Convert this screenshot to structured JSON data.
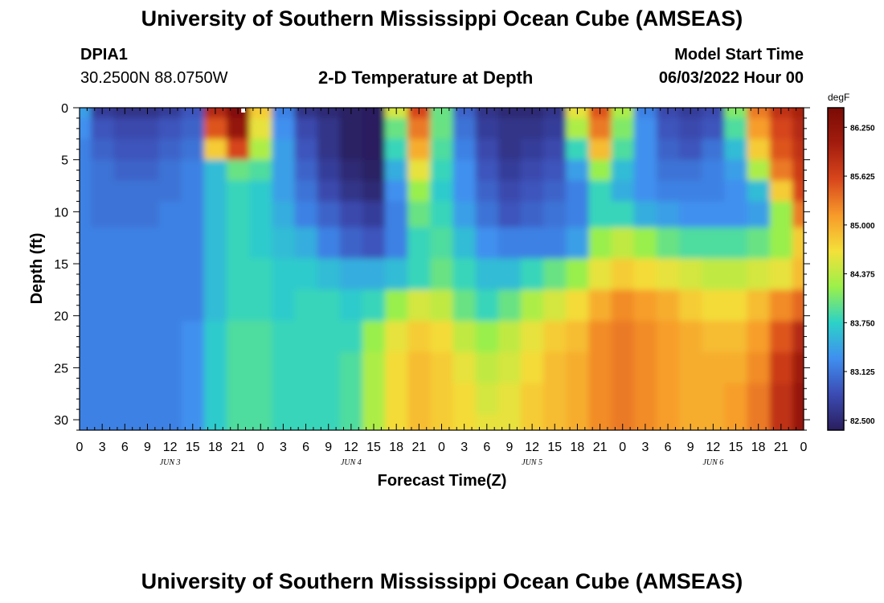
{
  "page": {
    "title": "University of Southern Mississippi Ocean Cube (AMSEAS)",
    "title_repeat": "University of Southern Mississippi Ocean Cube (AMSEAS)",
    "station_id": "DPIA1",
    "station_coords": "30.2500N  88.0750W",
    "plot_subtitle": "2-D Temperature at Depth",
    "model_start_label": "Model Start Time",
    "model_start_value": "06/03/2022 Hour 00"
  },
  "chart_data": {
    "type": "heatmap",
    "title": "2-D Temperature at Depth",
    "xlabel": "Forecast Time(Z)",
    "ylabel": "Depth (ft)",
    "colorbar_unit": "degF",
    "x_range_hours": [
      0,
      96
    ],
    "y_range_ft": [
      0,
      31
    ],
    "y_inverted": true,
    "x_tick_labels": [
      "0",
      "3",
      "6",
      "9",
      "12",
      "15",
      "18",
      "21",
      "0",
      "3",
      "6",
      "9",
      "12",
      "15",
      "18",
      "21",
      "0",
      "3",
      "6",
      "9",
      "12",
      "15",
      "18",
      "21",
      "0",
      "3",
      "6",
      "9",
      "12",
      "15",
      "18",
      "21",
      "0"
    ],
    "y_ticks": [
      0,
      5,
      10,
      15,
      20,
      25,
      30
    ],
    "day_labels": [
      {
        "label": "JUN 3",
        "hour": 12
      },
      {
        "label": "JUN 4",
        "hour": 36
      },
      {
        "label": "JUN 5",
        "hour": 60
      },
      {
        "label": "JUN 6",
        "hour": 84
      }
    ],
    "colorbar_range": [
      82.375,
      86.5
    ],
    "colorbar_ticks": [
      "82.500",
      "83.125",
      "83.750",
      "84.375",
      "85.000",
      "85.625",
      "86.250"
    ],
    "colorbar_tick_values": [
      82.5,
      83.125,
      83.75,
      84.375,
      85.0,
      85.625,
      86.25
    ],
    "palette": [
      "#2a1e5e",
      "#3b4bb3",
      "#3f8ff0",
      "#2cd2c8",
      "#9bf04a",
      "#f4e03a",
      "#f79a2a",
      "#d8461c",
      "#a31c0e",
      "#7a0b05"
    ],
    "depth_levels_ft": [
      0,
      2,
      4,
      6,
      8,
      10,
      13,
      16,
      19,
      22,
      25,
      28,
      31
    ],
    "time_hours": [
      0,
      3,
      6,
      9,
      12,
      15,
      18,
      21,
      24,
      27,
      30,
      33,
      36,
      39,
      42,
      45,
      48,
      51,
      54,
      57,
      60,
      63,
      66,
      69,
      72,
      75,
      78,
      81,
      84,
      87,
      90,
      93,
      96
    ],
    "temperature_degF": [
      [
        83.4,
        82.7,
        82.6,
        82.6,
        82.7,
        82.9,
        85.9,
        86.4,
        84.8,
        83.2,
        82.6,
        82.5,
        82.4,
        82.3,
        84.5,
        85.6,
        84.0,
        83.0,
        82.6,
        82.5,
        82.5,
        82.6,
        84.6,
        85.5,
        84.3,
        83.2,
        82.8,
        82.7,
        82.8,
        84.1,
        85.3,
        85.8,
        86.0
      ],
      [
        83.3,
        82.9,
        82.8,
        82.8,
        82.9,
        83.0,
        85.5,
        86.2,
        84.6,
        83.3,
        82.8,
        82.6,
        82.4,
        82.3,
        84.0,
        85.3,
        84.0,
        83.1,
        82.7,
        82.6,
        82.6,
        82.7,
        84.3,
        85.3,
        84.1,
        83.3,
        82.9,
        82.8,
        82.9,
        83.9,
        85.1,
        85.6,
        85.9
      ],
      [
        83.2,
        83.0,
        82.9,
        82.9,
        83.0,
        83.1,
        84.8,
        85.6,
        84.3,
        83.4,
        82.9,
        82.6,
        82.4,
        82.3,
        83.8,
        85.0,
        83.9,
        83.2,
        82.8,
        82.6,
        82.7,
        82.8,
        83.8,
        84.9,
        83.9,
        83.3,
        83.0,
        82.9,
        83.1,
        83.6,
        84.8,
        85.5,
        85.8
      ],
      [
        83.2,
        83.1,
        83.0,
        83.0,
        83.1,
        83.2,
        83.6,
        84.0,
        83.9,
        83.4,
        83.0,
        82.7,
        82.5,
        82.4,
        83.5,
        84.6,
        83.8,
        83.3,
        82.9,
        82.7,
        82.8,
        82.9,
        83.4,
        84.2,
        83.6,
        83.3,
        83.1,
        83.1,
        83.2,
        83.4,
        84.3,
        85.3,
        85.7
      ],
      [
        83.2,
        83.1,
        83.1,
        83.1,
        83.1,
        83.2,
        83.6,
        83.8,
        83.7,
        83.4,
        83.1,
        82.8,
        82.6,
        82.5,
        83.3,
        84.2,
        83.7,
        83.3,
        83.0,
        82.8,
        82.9,
        83.0,
        83.2,
        83.8,
        83.5,
        83.3,
        83.2,
        83.2,
        83.2,
        83.3,
        83.6,
        84.8,
        85.6
      ],
      [
        83.2,
        83.1,
        83.1,
        83.1,
        83.2,
        83.2,
        83.6,
        83.8,
        83.7,
        83.5,
        83.2,
        83.0,
        82.8,
        82.7,
        83.2,
        84.0,
        83.8,
        83.4,
        83.1,
        82.9,
        83.0,
        83.1,
        83.2,
        83.8,
        83.8,
        83.5,
        83.4,
        83.3,
        83.3,
        83.3,
        83.4,
        84.2,
        85.3
      ],
      [
        83.2,
        83.2,
        83.2,
        83.2,
        83.2,
        83.2,
        83.6,
        83.8,
        83.7,
        83.6,
        83.5,
        83.2,
        83.0,
        82.9,
        83.2,
        83.8,
        83.9,
        83.6,
        83.3,
        83.2,
        83.2,
        83.2,
        83.4,
        84.2,
        84.4,
        84.2,
        84.0,
        83.9,
        83.9,
        83.9,
        84.0,
        84.2,
        84.8
      ],
      [
        83.2,
        83.2,
        83.2,
        83.2,
        83.2,
        83.2,
        83.6,
        83.8,
        83.8,
        83.7,
        83.7,
        83.6,
        83.5,
        83.5,
        83.6,
        83.8,
        84.0,
        83.8,
        83.6,
        83.6,
        83.8,
        84.0,
        84.2,
        84.6,
        84.8,
        84.7,
        84.6,
        84.5,
        84.4,
        84.4,
        84.5,
        84.6,
        84.9
      ],
      [
        83.2,
        83.2,
        83.2,
        83.2,
        83.2,
        83.2,
        83.6,
        83.8,
        83.8,
        83.7,
        83.8,
        83.8,
        83.7,
        83.8,
        84.2,
        84.5,
        84.4,
        84.0,
        83.8,
        84.0,
        84.3,
        84.5,
        84.7,
        85.0,
        85.2,
        85.1,
        85.0,
        84.8,
        84.7,
        84.7,
        84.9,
        85.2,
        85.4
      ],
      [
        83.2,
        83.2,
        83.2,
        83.2,
        83.2,
        83.3,
        83.7,
        83.9,
        83.9,
        83.8,
        83.8,
        83.8,
        83.8,
        84.2,
        84.6,
        84.8,
        84.7,
        84.4,
        84.2,
        84.4,
        84.6,
        84.8,
        84.9,
        85.2,
        85.3,
        85.2,
        85.1,
        85.0,
        84.9,
        84.9,
        85.1,
        85.5,
        85.9
      ],
      [
        83.2,
        83.2,
        83.2,
        83.2,
        83.2,
        83.3,
        83.7,
        83.9,
        83.9,
        83.8,
        83.8,
        83.8,
        83.9,
        84.3,
        84.7,
        84.9,
        84.8,
        84.6,
        84.4,
        84.5,
        84.7,
        84.9,
        85.0,
        85.2,
        85.3,
        85.2,
        85.1,
        85.0,
        85.0,
        85.0,
        85.2,
        85.7,
        86.1
      ],
      [
        83.2,
        83.2,
        83.2,
        83.2,
        83.2,
        83.3,
        83.7,
        83.9,
        83.9,
        83.8,
        83.8,
        83.8,
        83.9,
        84.3,
        84.7,
        84.9,
        84.8,
        84.7,
        84.5,
        84.6,
        84.8,
        84.9,
        85.0,
        85.2,
        85.3,
        85.2,
        85.1,
        85.0,
        85.0,
        85.1,
        85.3,
        85.8,
        86.2
      ],
      [
        83.2,
        83.2,
        83.2,
        83.2,
        83.2,
        83.3,
        83.7,
        83.9,
        83.9,
        83.8,
        83.8,
        83.8,
        83.9,
        84.3,
        84.7,
        84.9,
        84.8,
        84.7,
        84.6,
        84.6,
        84.8,
        84.9,
        85.0,
        85.2,
        85.3,
        85.2,
        85.1,
        85.0,
        85.0,
        85.1,
        85.3,
        85.8,
        86.2
      ]
    ]
  }
}
